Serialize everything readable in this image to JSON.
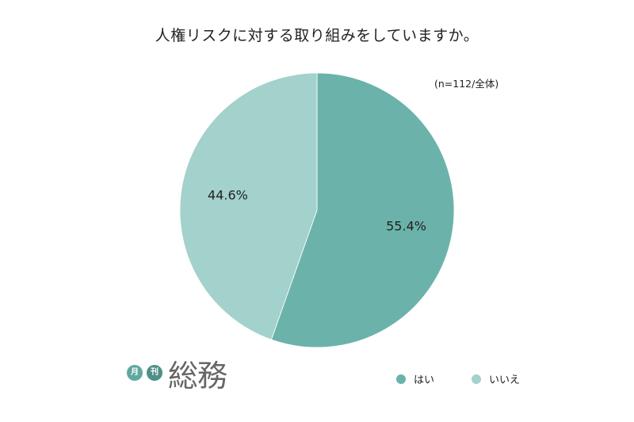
{
  "chart_data": {
    "type": "pie",
    "title": "人権リスクに対する取り組みをしていますか。",
    "note": "(n=112/全体)",
    "slices": [
      {
        "label": "はい",
        "value": 55.4,
        "value_label": "55.4%",
        "color": "#6bb3aa"
      },
      {
        "label": "いいえ",
        "value": 44.6,
        "value_label": "44.6%",
        "color": "#a3d1cc"
      }
    ],
    "legend_position": "bottom-right"
  },
  "logo": {
    "badge1": "月",
    "badge2": "刊",
    "word": "総務",
    "badge1_color": "#5fa89f",
    "badge2_color": "#4f8f87"
  }
}
